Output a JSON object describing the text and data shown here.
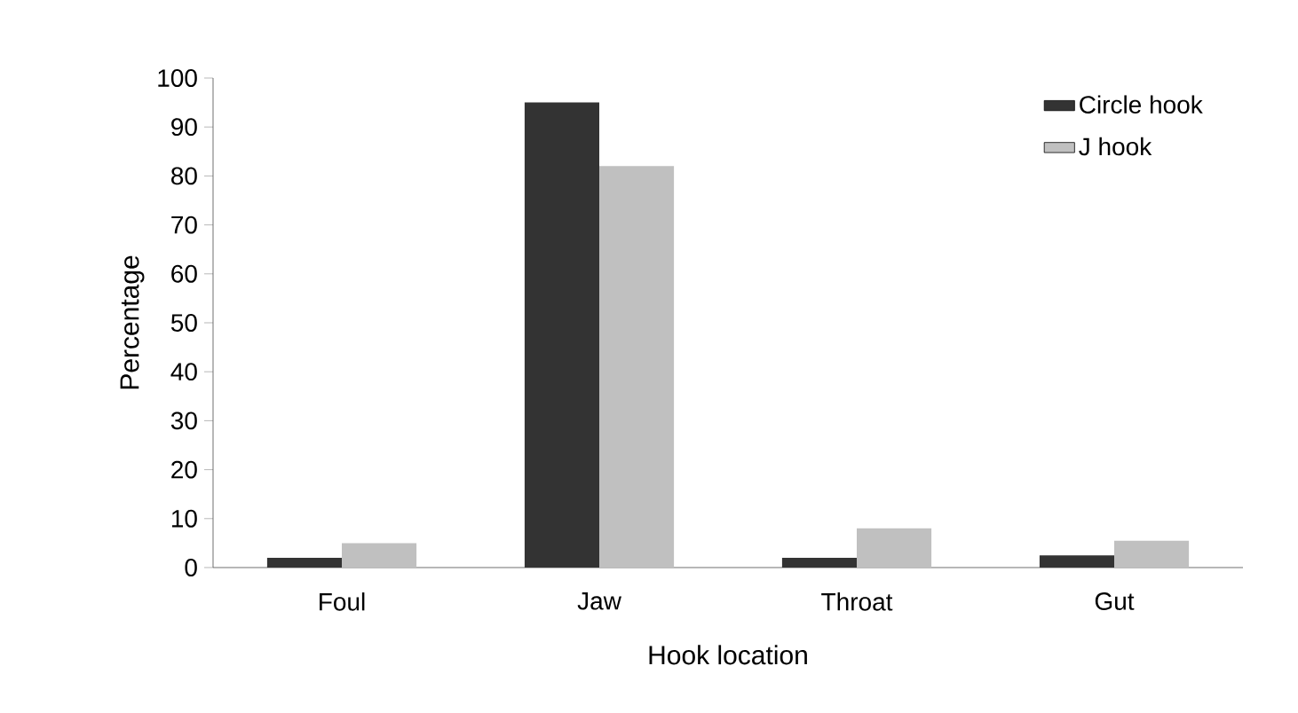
{
  "chart_data": {
    "type": "bar",
    "xlabel": "Hook location",
    "ylabel": "Percentage",
    "categories": [
      "Foul",
      "Jaw",
      "Throat",
      "Gut"
    ],
    "series": [
      {
        "name": "Circle hook",
        "color": "#333333",
        "values": [
          2,
          95,
          2,
          2.5
        ]
      },
      {
        "name": "J hook",
        "color": "#c0c0c0",
        "values": [
          5,
          82,
          8,
          5.5
        ]
      }
    ],
    "ylim": [
      0,
      100
    ],
    "yticks": [
      0,
      10,
      20,
      30,
      40,
      50,
      60,
      70,
      80,
      90,
      100
    ],
    "legend": "top right"
  }
}
